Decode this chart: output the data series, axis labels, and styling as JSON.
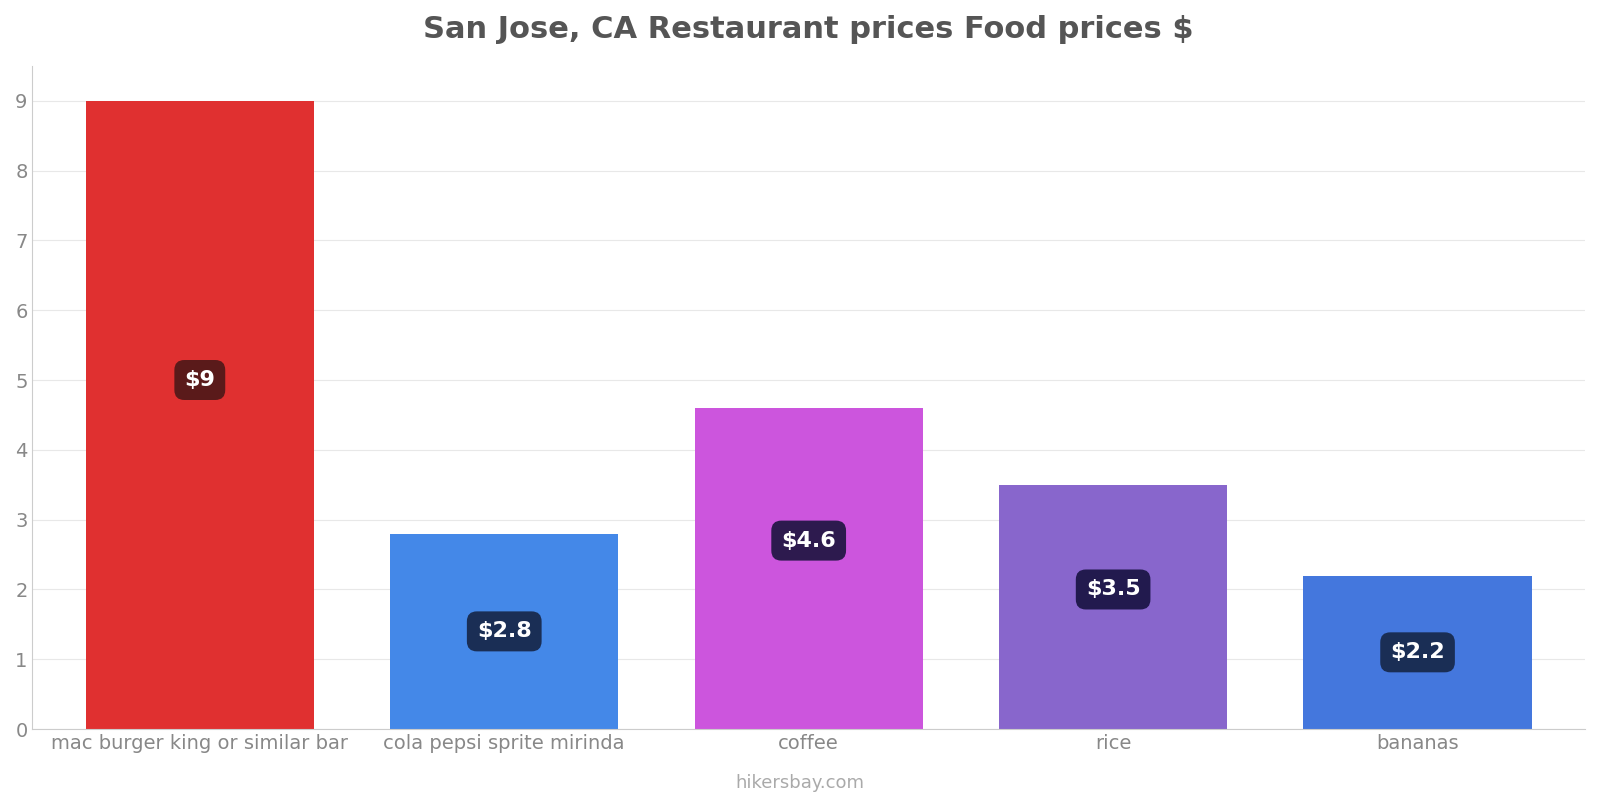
{
  "title": "San Jose, CA Restaurant prices Food prices $",
  "categories": [
    "mac burger king or similar bar",
    "cola pepsi sprite mirinda",
    "coffee",
    "rice",
    "bananas"
  ],
  "values": [
    9.0,
    2.8,
    4.6,
    3.5,
    2.2
  ],
  "labels": [
    "$9",
    "$2.8",
    "$4.6",
    "$3.5",
    "$2.2"
  ],
  "bar_colors": [
    "#e03030",
    "#4488e8",
    "#cc55dd",
    "#8866cc",
    "#4477dd"
  ],
  "label_box_colors": [
    "#5a1a1a",
    "#1a2e55",
    "#2d1a4e",
    "#221a4e",
    "#1a2e55"
  ],
  "label_y_positions": [
    5.0,
    1.4,
    2.7,
    2.0,
    1.1
  ],
  "ylim": [
    0,
    9.5
  ],
  "yticks": [
    0,
    1,
    2,
    3,
    4,
    5,
    6,
    7,
    8,
    9
  ],
  "title_fontsize": 22,
  "tick_fontsize": 14,
  "label_fontsize": 16,
  "background_color": "#ffffff",
  "grid_color": "#e8e8e8",
  "watermark": "hikersbay.com",
  "title_color": "#555555",
  "tick_color": "#888888",
  "bar_width": 0.75
}
